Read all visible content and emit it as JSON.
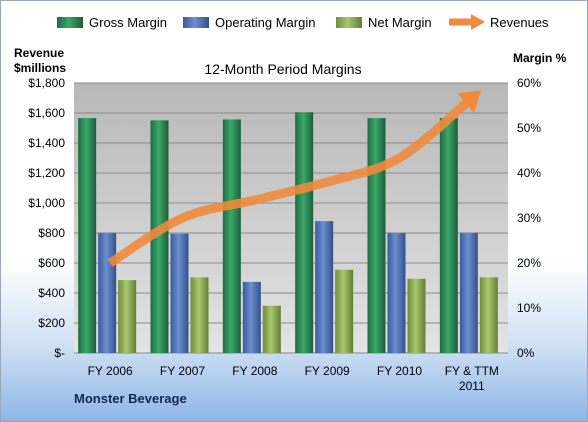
{
  "chart_data": {
    "type": "bar",
    "title": "12-Month Period Margins",
    "company": "Monster Beverage",
    "left_axis_label": [
      "Revenue",
      "$millions"
    ],
    "right_axis_label": "Margin %",
    "categories": [
      "FY 2006",
      "FY 2007",
      "FY 2008",
      "FY 2009",
      "FY 2010",
      "FY & TTM 2011"
    ],
    "y_left_ticks": [
      "$-",
      "$200",
      "$400",
      "$600",
      "$800",
      "$1,000",
      "$1,200",
      "$1,400",
      "$1,600",
      "$1,800"
    ],
    "y_right_ticks": [
      "0%",
      "10%",
      "20%",
      "30%",
      "40%",
      "50%",
      "60%"
    ],
    "ylim_left": [
      0,
      1800
    ],
    "ylim_right": [
      0,
      60
    ],
    "grid": true,
    "legend_position": "top",
    "series": [
      {
        "name": "Gross Margin",
        "axis": "right",
        "kind": "bar",
        "color": "#2e8b57",
        "values": [
          52.2,
          51.7,
          51.9,
          53.5,
          52.2,
          52.2
        ]
      },
      {
        "name": "Operating Margin",
        "axis": "right",
        "kind": "bar",
        "color": "#4f72b8",
        "values": [
          26.7,
          26.5,
          15.8,
          29.3,
          26.7,
          26.7
        ]
      },
      {
        "name": "Net Margin",
        "axis": "right",
        "kind": "bar",
        "color": "#8cae55",
        "values": [
          16.2,
          16.8,
          10.5,
          18.5,
          16.5,
          16.8
        ]
      },
      {
        "name": "Revenues",
        "axis": "left",
        "kind": "line",
        "color": "#f08a3c",
        "values": [
          600,
          900,
          1020,
          1140,
          1300,
          1700
        ]
      }
    ]
  }
}
